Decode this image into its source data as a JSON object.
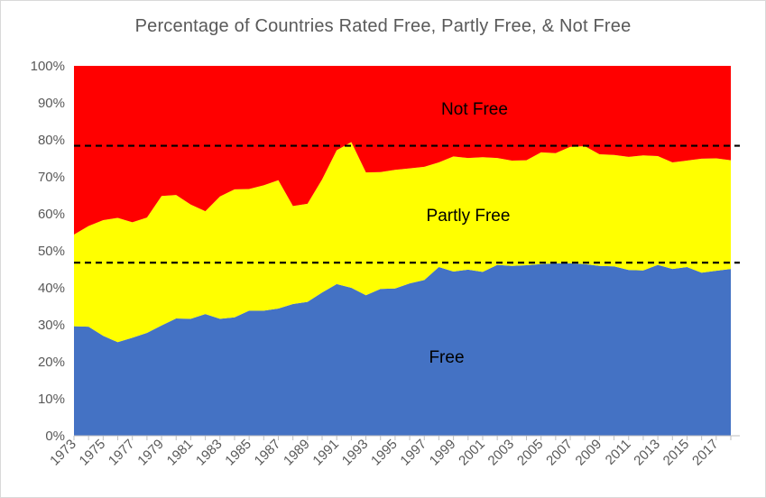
{
  "chart_data": {
    "type": "area",
    "title": "Percentage of Countries Rated Free, Partly Free, & Not Free",
    "stacked": true,
    "x": [
      1973,
      1974,
      1975,
      1976,
      1977,
      1978,
      1979,
      1980,
      1981,
      1982,
      1983,
      1984,
      1985,
      1986,
      1987,
      1988,
      1989,
      1990,
      1991,
      1992,
      1993,
      1994,
      1995,
      1996,
      1997,
      1998,
      1999,
      2000,
      2001,
      2002,
      2003,
      2004,
      2005,
      2006,
      2007,
      2008,
      2009,
      2010,
      2011,
      2012,
      2013,
      2014,
      2015,
      2016,
      2017,
      2018
    ],
    "x_tick_labels": [
      "1973",
      "1975",
      "1977",
      "1979",
      "1981",
      "1983",
      "1985",
      "1987",
      "1989",
      "1991",
      "1993",
      "1995",
      "1997",
      "1999",
      "2001",
      "2003",
      "2005",
      "2007",
      "2009",
      "2011",
      "2013",
      "2015",
      "2017"
    ],
    "y_tick_labels": [
      "0%",
      "10%",
      "20%",
      "30%",
      "40%",
      "50%",
      "60%",
      "70%",
      "80%",
      "90%",
      "100%"
    ],
    "ylim": [
      0,
      100
    ],
    "series": [
      {
        "name": "Free",
        "color": "#4472c4",
        "values": [
          29.6,
          29.5,
          27.0,
          25.3,
          26.5,
          27.8,
          29.8,
          31.7,
          31.6,
          32.9,
          31.6,
          32.0,
          33.8,
          33.8,
          34.4,
          35.6,
          36.2,
          38.7,
          41.0,
          40.0,
          38.0,
          39.7,
          39.8,
          41.2,
          42.1,
          45.6,
          44.4,
          44.9,
          44.3,
          46.2,
          45.9,
          46.1,
          46.4,
          46.6,
          46.6,
          46.4,
          45.9,
          45.8,
          44.8,
          44.7,
          46.2,
          45.1,
          45.6,
          44.1,
          44.6,
          45.1
        ]
      },
      {
        "name": "Partly Free",
        "color": "#ffff00",
        "values": [
          24.8,
          27.2,
          31.3,
          33.6,
          31.2,
          31.2,
          35.0,
          33.4,
          30.9,
          27.8,
          33.1,
          34.6,
          32.9,
          33.9,
          34.7,
          26.5,
          26.5,
          30.6,
          36.2,
          39.4,
          33.2,
          31.6,
          32.1,
          31.1,
          30.6,
          28.3,
          31.1,
          30.2,
          31.0,
          28.9,
          28.5,
          28.4,
          30.2,
          29.8,
          31.5,
          31.9,
          30.2,
          30.1,
          30.6,
          31.1,
          29.4,
          28.8,
          28.8,
          30.8,
          30.4,
          29.4
        ]
      },
      {
        "name": "Not Free",
        "color": "#ff0000",
        "values": [
          45.6,
          43.3,
          41.7,
          41.1,
          42.3,
          41.0,
          35.2,
          34.9,
          37.5,
          39.3,
          35.3,
          33.4,
          33.3,
          32.3,
          30.9,
          37.9,
          37.3,
          30.7,
          22.8,
          20.6,
          28.8,
          28.7,
          28.1,
          27.7,
          27.3,
          26.1,
          24.5,
          24.9,
          24.7,
          24.9,
          25.6,
          25.5,
          23.4,
          23.6,
          21.9,
          21.7,
          23.9,
          24.1,
          24.6,
          24.2,
          24.4,
          26.1,
          25.6,
          25.1,
          25.0,
          25.5
        ]
      }
    ],
    "reference_lines": [
      {
        "value": 78.4,
        "style": "dashed",
        "color": "#000000"
      },
      {
        "value": 46.8,
        "style": "dashed",
        "color": "#000000"
      }
    ],
    "area_labels": [
      {
        "text": "Not Free",
        "series": "Not Free"
      },
      {
        "text": "Partly Free",
        "series": "Partly Free"
      },
      {
        "text": "Free",
        "series": "Free"
      }
    ],
    "grid": false,
    "legend": "none"
  }
}
